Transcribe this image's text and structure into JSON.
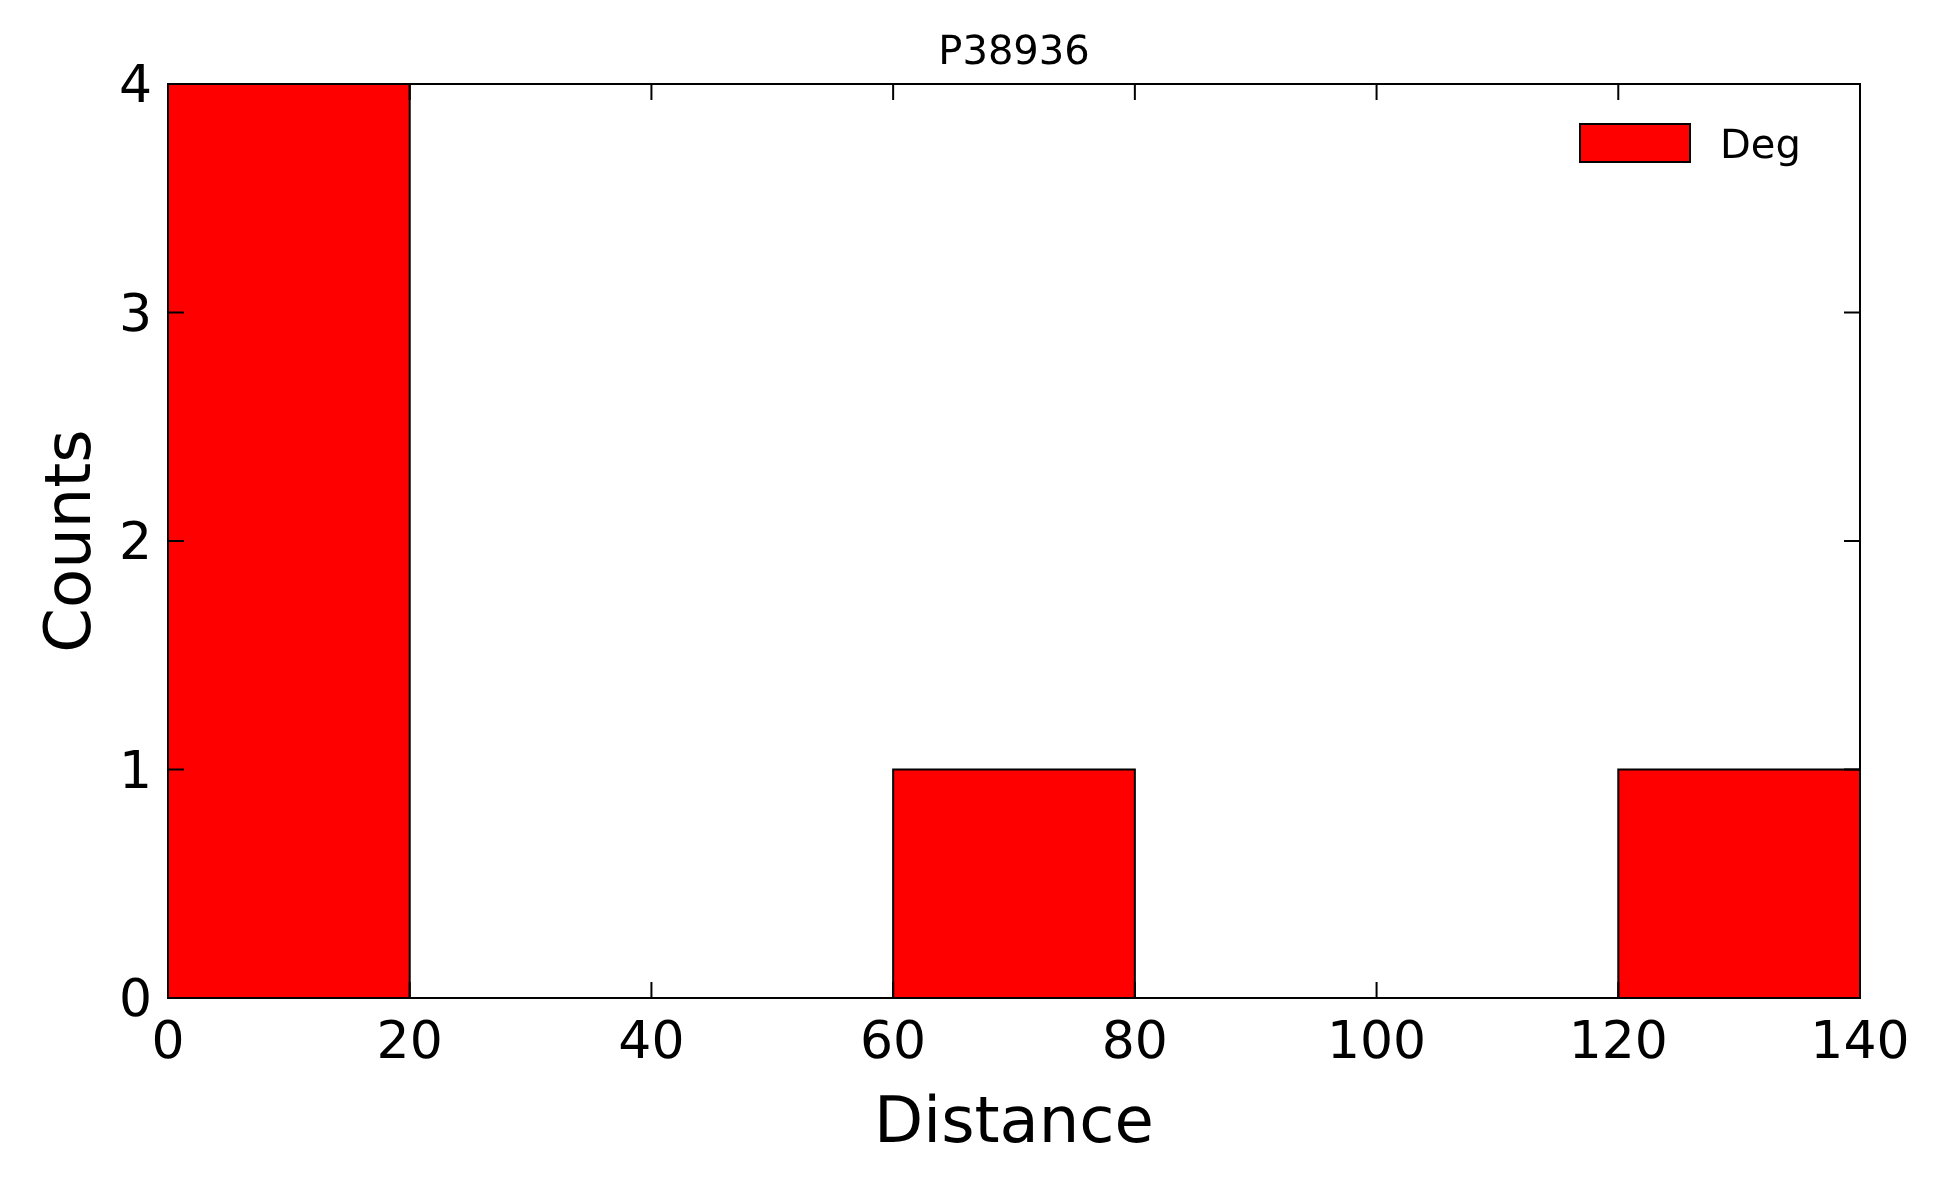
{
  "chart_data": {
    "type": "histogram",
    "title": "P38936",
    "xlabel": "Distance",
    "ylabel": "Counts",
    "bins": [
      0,
      20,
      40,
      60,
      80,
      100,
      120,
      140
    ],
    "series": [
      {
        "name": "Deg",
        "color": "#ff0000",
        "values": [
          4,
          0,
          0,
          1,
          0,
          0,
          1
        ]
      }
    ],
    "xlim": [
      0,
      140
    ],
    "xticks": [
      0,
      20,
      40,
      60,
      80,
      100,
      120,
      140
    ],
    "ylim": [
      0,
      4
    ],
    "yticks": [
      0,
      1,
      2,
      3,
      4
    ],
    "grid": false,
    "legend": "top right"
  }
}
